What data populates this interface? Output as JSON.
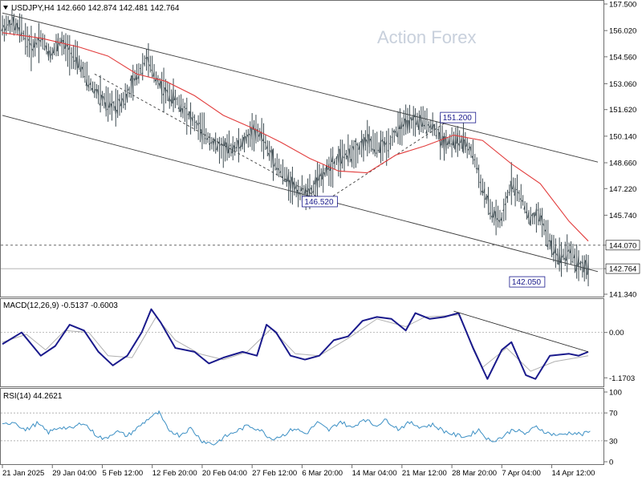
{
  "header": {
    "symbol_line": "USDJPY,H4  142.660 142.874 142.481 142.764",
    "watermark": "Action Forex"
  },
  "chart_data": [
    {
      "type": "candlestick",
      "title": "USDJPY,H4  142.660 142.874 142.481 142.764",
      "ylim": [
        141.34,
        157.5
      ],
      "yticks": [
        "157.500",
        "156.020",
        "154.560",
        "153.060",
        "151.620",
        "150.140",
        "148.660",
        "147.220",
        "145.740",
        "144.070",
        "142.764",
        "141.340"
      ],
      "close_path": [
        [
          0,
          156.2
        ],
        [
          10,
          156.4
        ],
        [
          20,
          156.0
        ],
        [
          30,
          155.0
        ],
        [
          40,
          155.6
        ],
        [
          50,
          154.7
        ],
        [
          60,
          155.4
        ],
        [
          70,
          154.8
        ],
        [
          80,
          154.2
        ],
        [
          90,
          153.1
        ],
        [
          100,
          152.5
        ],
        [
          110,
          151.8
        ],
        [
          120,
          151.9
        ],
        [
          130,
          152.4
        ],
        [
          140,
          153.5
        ],
        [
          150,
          154.5
        ],
        [
          160,
          153.4
        ],
        [
          170,
          152.6
        ],
        [
          180,
          152.2
        ],
        [
          190,
          151.6
        ],
        [
          200,
          150.9
        ],
        [
          210,
          150.3
        ],
        [
          220,
          149.7
        ],
        [
          230,
          149.4
        ],
        [
          240,
          149.5
        ],
        [
          250,
          149.7
        ],
        [
          260,
          150.4
        ],
        [
          270,
          150.2
        ],
        [
          280,
          149.0
        ],
        [
          290,
          148.2
        ],
        [
          300,
          147.5
        ],
        [
          310,
          147.0
        ],
        [
          320,
          146.9
        ],
        [
          330,
          147.7
        ],
        [
          340,
          148.4
        ],
        [
          350,
          148.9
        ],
        [
          360,
          149.1
        ],
        [
          370,
          149.4
        ],
        [
          380,
          149.9
        ],
        [
          390,
          149.5
        ],
        [
          400,
          149.6
        ],
        [
          410,
          150.4
        ],
        [
          420,
          150.8
        ],
        [
          430,
          151.0
        ],
        [
          440,
          150.9
        ],
        [
          450,
          150.6
        ],
        [
          460,
          149.8
        ],
        [
          470,
          149.9
        ],
        [
          480,
          149.8
        ],
        [
          490,
          149.2
        ],
        [
          500,
          147.2
        ],
        [
          510,
          145.8
        ],
        [
          520,
          145.4
        ],
        [
          530,
          147.6
        ],
        [
          540,
          146.7
        ],
        [
          550,
          145.5
        ],
        [
          560,
          145.7
        ],
        [
          570,
          144.2
        ],
        [
          580,
          143.4
        ],
        [
          590,
          143.8
        ],
        [
          600,
          143.0
        ],
        [
          610,
          142.76
        ]
      ],
      "ma_path": [
        [
          0,
          155.9
        ],
        [
          40,
          155.6
        ],
        [
          80,
          155.1
        ],
        [
          110,
          154.6
        ],
        [
          140,
          153.6
        ],
        [
          170,
          153.2
        ],
        [
          200,
          152.4
        ],
        [
          230,
          151.3
        ],
        [
          260,
          150.6
        ],
        [
          290,
          149.8
        ],
        [
          320,
          148.9
        ],
        [
          350,
          148.2
        ],
        [
          380,
          148.1
        ],
        [
          410,
          149.1
        ],
        [
          440,
          149.6
        ],
        [
          470,
          150.2
        ],
        [
          500,
          149.9
        ],
        [
          530,
          148.6
        ],
        [
          560,
          147.5
        ],
        [
          590,
          145.4
        ],
        [
          610,
          144.3
        ]
      ],
      "channel_lines": [
        {
          "from": [
            0,
            157.0
          ],
          "to": [
            620,
            148.7
          ]
        },
        {
          "from": [
            0,
            151.3
          ],
          "to": [
            620,
            142.6
          ]
        }
      ],
      "dashed_trend": {
        "from": [
          96,
          153.6
        ],
        "to": [
          336,
          146.52
        ]
      },
      "trend_up": {
        "from": [
          336,
          146.52
        ],
        "to": [
          470,
          151.2
        ]
      },
      "levels": [
        {
          "value": 144.07,
          "label": "144.070",
          "style": "dashed"
        },
        {
          "value": 142.764,
          "label": "142.764",
          "style": "solid"
        }
      ],
      "annotations": [
        {
          "label": "151.200",
          "x": 456,
          "value": 151.2
        },
        {
          "label": "146.520",
          "x": 312,
          "value": 146.52
        },
        {
          "label": "142.050",
          "x": 528,
          "value": 142.05
        }
      ],
      "colors": {
        "candles": "#3c4a50",
        "ma": "#e23c3c",
        "channel": "#404040",
        "frame": "#6e6e6e"
      }
    },
    {
      "type": "line",
      "title": "MACD(12,26,9) -0.5137 -0.6003",
      "ylim": [
        -1.35,
        0.8
      ],
      "yticks": [
        "0.00",
        "-1.1703"
      ],
      "macd_path": [
        [
          0,
          -0.3
        ],
        [
          20,
          0.0
        ],
        [
          40,
          -0.6
        ],
        [
          55,
          -0.35
        ],
        [
          70,
          0.2
        ],
        [
          85,
          0.05
        ],
        [
          100,
          -0.5
        ],
        [
          115,
          -0.85
        ],
        [
          130,
          -0.6
        ],
        [
          145,
          0.0
        ],
        [
          155,
          0.6
        ],
        [
          165,
          0.25
        ],
        [
          180,
          -0.4
        ],
        [
          200,
          -0.5
        ],
        [
          215,
          -0.8
        ],
        [
          230,
          -0.65
        ],
        [
          250,
          -0.5
        ],
        [
          265,
          -0.6
        ],
        [
          275,
          0.2
        ],
        [
          285,
          0.0
        ],
        [
          300,
          -0.6
        ],
        [
          315,
          -0.7
        ],
        [
          330,
          -0.6
        ],
        [
          345,
          -0.2
        ],
        [
          360,
          -0.1
        ],
        [
          375,
          0.3
        ],
        [
          390,
          0.4
        ],
        [
          405,
          0.35
        ],
        [
          420,
          0.05
        ],
        [
          430,
          0.5
        ],
        [
          445,
          0.35
        ],
        [
          460,
          0.4
        ],
        [
          475,
          0.5
        ],
        [
          490,
          -0.4
        ],
        [
          505,
          -1.2
        ],
        [
          520,
          -0.45
        ],
        [
          530,
          -0.25
        ],
        [
          545,
          -1.1
        ],
        [
          555,
          -1.2
        ],
        [
          570,
          -0.6
        ],
        [
          590,
          -0.55
        ],
        [
          600,
          -0.6
        ],
        [
          610,
          -0.5
        ]
      ],
      "signal_path": [
        [
          0,
          -0.25
        ],
        [
          25,
          -0.05
        ],
        [
          45,
          -0.45
        ],
        [
          65,
          0.05
        ],
        [
          90,
          0.0
        ],
        [
          110,
          -0.6
        ],
        [
          135,
          -0.65
        ],
        [
          160,
          0.4
        ],
        [
          180,
          -0.2
        ],
        [
          205,
          -0.55
        ],
        [
          230,
          -0.7
        ],
        [
          255,
          -0.5
        ],
        [
          280,
          0.1
        ],
        [
          305,
          -0.55
        ],
        [
          330,
          -0.6
        ],
        [
          360,
          -0.15
        ],
        [
          390,
          0.35
        ],
        [
          420,
          0.15
        ],
        [
          440,
          0.4
        ],
        [
          475,
          0.45
        ],
        [
          500,
          -0.9
        ],
        [
          525,
          -0.4
        ],
        [
          550,
          -1.0
        ],
        [
          575,
          -0.75
        ],
        [
          610,
          -0.6
        ]
      ],
      "trendline": {
        "from": [
          470,
          0.55
        ],
        "to": [
          610,
          -0.5
        ]
      },
      "colors": {
        "macd": "#1a1a8c",
        "signal": "#b0b0b0"
      }
    },
    {
      "type": "line",
      "title": "RSI(14) 44.2621",
      "ylim": [
        0,
        100
      ],
      "yticks": [
        "100",
        "70",
        "30",
        "0"
      ],
      "rsi_path": [
        [
          0,
          52
        ],
        [
          12,
          58
        ],
        [
          24,
          45
        ],
        [
          36,
          55
        ],
        [
          48,
          42
        ],
        [
          60,
          50
        ],
        [
          72,
          47
        ],
        [
          84,
          57
        ],
        [
          96,
          40
        ],
        [
          106,
          32
        ],
        [
          118,
          44
        ],
        [
          130,
          37
        ],
        [
          142,
          50
        ],
        [
          154,
          64
        ],
        [
          163,
          70
        ],
        [
          172,
          47
        ],
        [
          184,
          38
        ],
        [
          196,
          48
        ],
        [
          208,
          30
        ],
        [
          220,
          25
        ],
        [
          232,
          36
        ],
        [
          244,
          44
        ],
        [
          256,
          52
        ],
        [
          268,
          46
        ],
        [
          280,
          33
        ],
        [
          292,
          38
        ],
        [
          304,
          48
        ],
        [
          316,
          40
        ],
        [
          328,
          56
        ],
        [
          340,
          45
        ],
        [
          352,
          58
        ],
        [
          364,
          48
        ],
        [
          376,
          62
        ],
        [
          388,
          52
        ],
        [
          400,
          60
        ],
        [
          412,
          47
        ],
        [
          424,
          56
        ],
        [
          436,
          50
        ],
        [
          448,
          53
        ],
        [
          460,
          44
        ],
        [
          472,
          38
        ],
        [
          484,
          36
        ],
        [
          496,
          46
        ],
        [
          508,
          29
        ],
        [
          520,
          35
        ],
        [
          532,
          47
        ],
        [
          544,
          40
        ],
        [
          556,
          50
        ],
        [
          568,
          41
        ],
        [
          580,
          38
        ],
        [
          592,
          42
        ],
        [
          604,
          39
        ],
        [
          612,
          44
        ]
      ],
      "colors": {
        "rsi": "#3b8fc4"
      }
    }
  ],
  "xaxis": {
    "labels": [
      "21 Jan 2025",
      "29 Jan 04:00",
      "5 Feb 12:00",
      "12 Feb 20:00",
      "20 Feb 04:00",
      "27 Feb 12:00",
      "6 Mar 20:00",
      "14 Mar 04:00",
      "21 Mar 12:00",
      "28 Mar 20:00",
      "7 Apr 04:00",
      "14 Apr 12:00"
    ],
    "label_pos": [
      0,
      52,
      104,
      156,
      208,
      260,
      312,
      364,
      416,
      468,
      520,
      572
    ]
  }
}
